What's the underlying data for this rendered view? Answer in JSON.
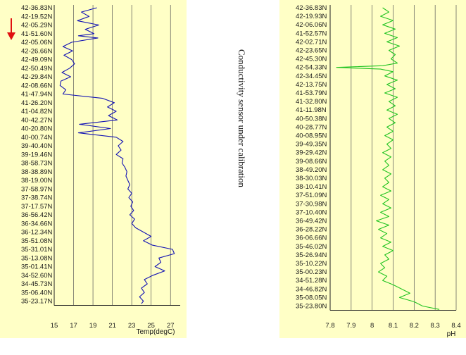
{
  "note": "Conductivity sensor under calibration",
  "colors": {
    "panel_bg": "#ffffc6",
    "temp_line": "#1414b4",
    "ph_line": "#22c422",
    "marker_arrow": "#e01010",
    "grid": "#555555"
  },
  "marker": "red-down-arrow",
  "chart_data": [
    {
      "type": "line",
      "orientation": "vertical-profile",
      "xlabel": "Temp(degC)",
      "xlim": [
        15,
        28
      ],
      "xticks": [
        15,
        17,
        19,
        21,
        23,
        25,
        27
      ],
      "grid": "vertical",
      "y_labels": [
        "42-36.83N",
        "42-19.52N",
        "42-05.29N",
        "41-51.60N",
        "42-05.06N",
        "42-26.66N",
        "42-49.09N",
        "42-50.49N",
        "42-29.84N",
        "42-08.66N",
        "41-47.94N",
        "41-26.20N",
        "41-04.82N",
        "40-42.27N",
        "40-20.80N",
        "40-00.74N",
        "39-40.40N",
        "39-19.46N",
        "38-58.73N",
        "38-38.89N",
        "38-19.00N",
        "37-58.97N",
        "37-38.74N",
        "37-17.57N",
        "36-56.42N",
        "36-34.66N",
        "36-12.34N",
        "35-51.08N",
        "35-31.01N",
        "35-13.08N",
        "35-01.41N",
        "34-52.60N",
        "34-45.73N",
        "35-06.40N",
        "35-23.17N"
      ],
      "series": [
        {
          "y_index": [
            0,
            0.5,
            1,
            1.5,
            2,
            2.5,
            3,
            3.25,
            3.5,
            4,
            4.5,
            5,
            5.5,
            6,
            6.5,
            7,
            7.5,
            8,
            8.5,
            9,
            9.5,
            10,
            10.5,
            11,
            11.5,
            12,
            12.5,
            13,
            13.5,
            14,
            14.5,
            15,
            15.5,
            16,
            16.5,
            17,
            17.5,
            18,
            18.5,
            19,
            19.5,
            20,
            20.5,
            21,
            21.5,
            22,
            22.5,
            23,
            23.5,
            24,
            24.5,
            25,
            25.5,
            26,
            26.5,
            27,
            27.5,
            28,
            28.5,
            29,
            29.5,
            30,
            30.5,
            31,
            31.5,
            32,
            32.5,
            33,
            33.5,
            34,
            34.3
          ],
          "values": [
            19.4,
            17.8,
            18.6,
            17.4,
            19.6,
            18.2,
            19.1,
            17.5,
            19.5,
            16.8,
            15.9,
            16.9,
            16.0,
            16.8,
            17.1,
            16.6,
            15.8,
            16.7,
            15.7,
            15.6,
            16.2,
            15.9,
            20.0,
            21.2,
            20.5,
            21.4,
            20.6,
            21.5,
            17.6,
            20.8,
            17.5,
            21.4,
            22.1,
            21.6,
            21.9,
            21.4,
            22.1,
            22.0,
            22.3,
            22.5,
            22.4,
            22.6,
            22.8,
            22.6,
            23.0,
            22.7,
            23.1,
            22.9,
            23.2,
            22.8,
            23.3,
            23.0,
            23.4,
            24.2,
            25.0,
            24.2,
            25.1,
            27.2,
            27.4,
            25.8,
            26.0,
            25.4,
            26.4,
            25.2,
            24.3,
            24.6,
            24.0,
            24.3,
            23.8,
            24.2,
            24.0
          ]
        }
      ]
    },
    {
      "type": "line",
      "orientation": "vertical-profile",
      "xlabel": "pH",
      "xlim": [
        7.8,
        8.4
      ],
      "xticks": [
        7.8,
        7.9,
        8,
        8.1,
        8.2,
        8.3,
        8.4
      ],
      "grid": "vertical",
      "y_labels": [
        "42-36.83N",
        "42-19.93N",
        "42-06.06N",
        "41-52.57N",
        "42-02.71N",
        "42-23.65N",
        "42-45.30N",
        "42-54.33N",
        "42-34.45N",
        "42-13.75N",
        "41-53.79N",
        "41-32.80N",
        "41-11.98N",
        "40-50.38N",
        "40-28.77N",
        "40-08.95N",
        "39-49.35N",
        "39-29.42N",
        "39-08.66N",
        "38-49.20N",
        "38-30.03N",
        "38-10.41N",
        "37-51.09N",
        "37-30.98N",
        "37-10.40N",
        "36-49.42N",
        "36-28.22N",
        "36-06.66N",
        "35-46.02N",
        "35-26.94N",
        "35-10.22N",
        "35-00.23N",
        "34-51.28N",
        "34-46.82N",
        "35-08.05N",
        "35-23.80N"
      ],
      "series": [
        {
          "y_index": [
            0,
            0.5,
            1,
            1.5,
            2,
            2.5,
            3,
            3.5,
            4,
            4.5,
            5,
            5.5,
            6,
            6.5,
            6.8,
            7,
            7.2,
            7.5,
            8,
            8.5,
            9,
            9.5,
            10,
            10.5,
            11,
            11.5,
            12,
            12.5,
            13,
            13.5,
            14,
            14.5,
            15,
            15.5,
            16,
            16.5,
            17,
            17.5,
            18,
            18.5,
            19,
            19.5,
            20,
            20.5,
            21,
            21.5,
            22,
            22.5,
            23,
            23.5,
            24,
            24.5,
            25,
            25.5,
            26,
            26.5,
            27,
            27.5,
            28,
            28.5,
            29,
            29.5,
            30,
            30.5,
            31,
            31.5,
            32,
            32.5,
            33,
            33.5,
            34,
            34.5,
            35,
            35.4
          ],
          "values": [
            8.05,
            8.08,
            8.04,
            8.1,
            8.05,
            8.11,
            8.06,
            8.12,
            8.07,
            8.13,
            8.08,
            8.11,
            8.09,
            8.12,
            8.05,
            7.83,
            8.04,
            8.1,
            8.06,
            8.12,
            8.07,
            8.11,
            8.06,
            8.12,
            8.08,
            8.11,
            8.07,
            8.12,
            8.08,
            8.11,
            8.07,
            8.1,
            8.06,
            8.1,
            8.07,
            8.09,
            8.05,
            8.09,
            8.06,
            8.08,
            8.05,
            8.09,
            8.06,
            8.08,
            8.05,
            8.09,
            8.04,
            8.08,
            8.05,
            8.09,
            8.04,
            8.08,
            8.02,
            8.08,
            8.03,
            8.07,
            8.04,
            8.09,
            8.05,
            8.1,
            8.06,
            8.08,
            8.04,
            8.06,
            8.03,
            8.07,
            8.05,
            8.1,
            8.14,
            8.18,
            8.13,
            8.2,
            8.24,
            8.32
          ]
        }
      ]
    }
  ]
}
